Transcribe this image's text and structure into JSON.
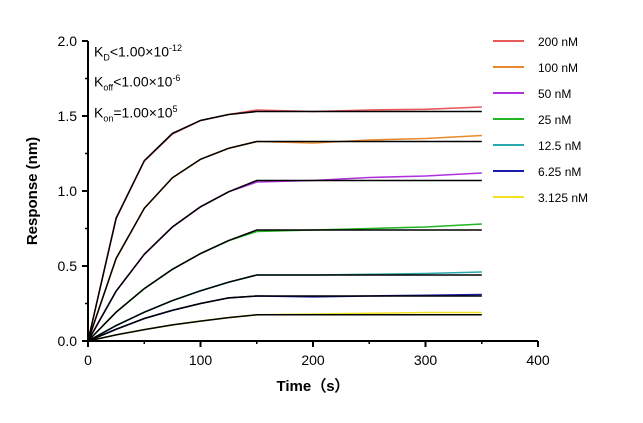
{
  "chart_data": {
    "type": "line",
    "xlabel": "Time（s）",
    "ylabel": "Response (nm)",
    "xlim": [
      0,
      400
    ],
    "ylim": [
      0,
      2.0
    ],
    "xticks": [
      "0",
      "100",
      "200",
      "300",
      "400"
    ],
    "yticks": [
      "0.0",
      "0.5",
      "1.0",
      "1.5",
      "2.0"
    ],
    "grid": false,
    "legend_position": "right",
    "annotations": {
      "kd": {
        "sym": "K",
        "sub": "D",
        "rel": "<1.00×10",
        "exp": "-12"
      },
      "koff": {
        "sym": "K",
        "sub": "off",
        "rel": "<1.00×10",
        "exp": "-6"
      },
      "kon": {
        "sym": "K",
        "sub": "on",
        "rel": "=1.00×10",
        "exp": "5"
      }
    },
    "x": [
      0,
      25,
      50,
      75,
      100,
      125,
      150,
      200,
      250,
      300,
      350
    ],
    "fit_color": "#000000",
    "series": [
      {
        "name": "200 nM",
        "color": "#e8595c",
        "measured": [
          0,
          0.82,
          1.2,
          1.38,
          1.47,
          1.51,
          1.54,
          1.53,
          1.54,
          1.545,
          1.56
        ],
        "fit": [
          0,
          0.817,
          1.202,
          1.384,
          1.47,
          1.51,
          1.53,
          1.53,
          1.53,
          1.53,
          1.53
        ]
      },
      {
        "name": "100 nM",
        "color": "#e8892c",
        "measured": [
          0,
          0.55,
          0.885,
          1.088,
          1.211,
          1.285,
          1.33,
          1.32,
          1.34,
          1.35,
          1.37
        ],
        "fit": [
          0,
          0.55,
          0.885,
          1.088,
          1.211,
          1.285,
          1.33,
          1.33,
          1.33,
          1.33,
          1.33
        ]
      },
      {
        "name": "50 nM",
        "color": "#b030e0",
        "measured": [
          0,
          0.332,
          0.578,
          0.76,
          0.895,
          0.995,
          1.06,
          1.07,
          1.09,
          1.1,
          1.12
        ],
        "fit": [
          0,
          0.332,
          0.578,
          0.76,
          0.895,
          0.995,
          1.07,
          1.07,
          1.07,
          1.07,
          1.07
        ]
      },
      {
        "name": "25 nM",
        "color": "#22b422",
        "measured": [
          0,
          0.192,
          0.349,
          0.478,
          0.583,
          0.669,
          0.73,
          0.74,
          0.75,
          0.76,
          0.78
        ],
        "fit": [
          0,
          0.192,
          0.349,
          0.478,
          0.583,
          0.669,
          0.74,
          0.74,
          0.74,
          0.74,
          0.74
        ]
      },
      {
        "name": "12.5 nM",
        "color": "#2aa8b0",
        "measured": [
          0,
          0.103,
          0.192,
          0.269,
          0.335,
          0.392,
          0.44,
          0.44,
          0.445,
          0.45,
          0.46
        ],
        "fit": [
          0,
          0.103,
          0.192,
          0.269,
          0.335,
          0.392,
          0.44,
          0.44,
          0.44,
          0.44,
          0.44
        ]
      },
      {
        "name": "6.25 nM",
        "color": "#1a1aa8",
        "measured": [
          0,
          0.078,
          0.15,
          0.205,
          0.25,
          0.287,
          0.3,
          0.295,
          0.3,
          0.305,
          0.31
        ],
        "fit": [
          0,
          0.078,
          0.15,
          0.205,
          0.25,
          0.287,
          0.3,
          0.3,
          0.3,
          0.3,
          0.3
        ]
      },
      {
        "name": "3.125 nM",
        "color": "#f0e020",
        "measured": [
          0,
          0.041,
          0.076,
          0.107,
          0.133,
          0.156,
          0.175,
          0.18,
          0.185,
          0.19,
          0.19
        ],
        "fit": [
          0,
          0.041,
          0.076,
          0.107,
          0.133,
          0.156,
          0.175,
          0.175,
          0.175,
          0.175,
          0.175
        ]
      }
    ]
  }
}
